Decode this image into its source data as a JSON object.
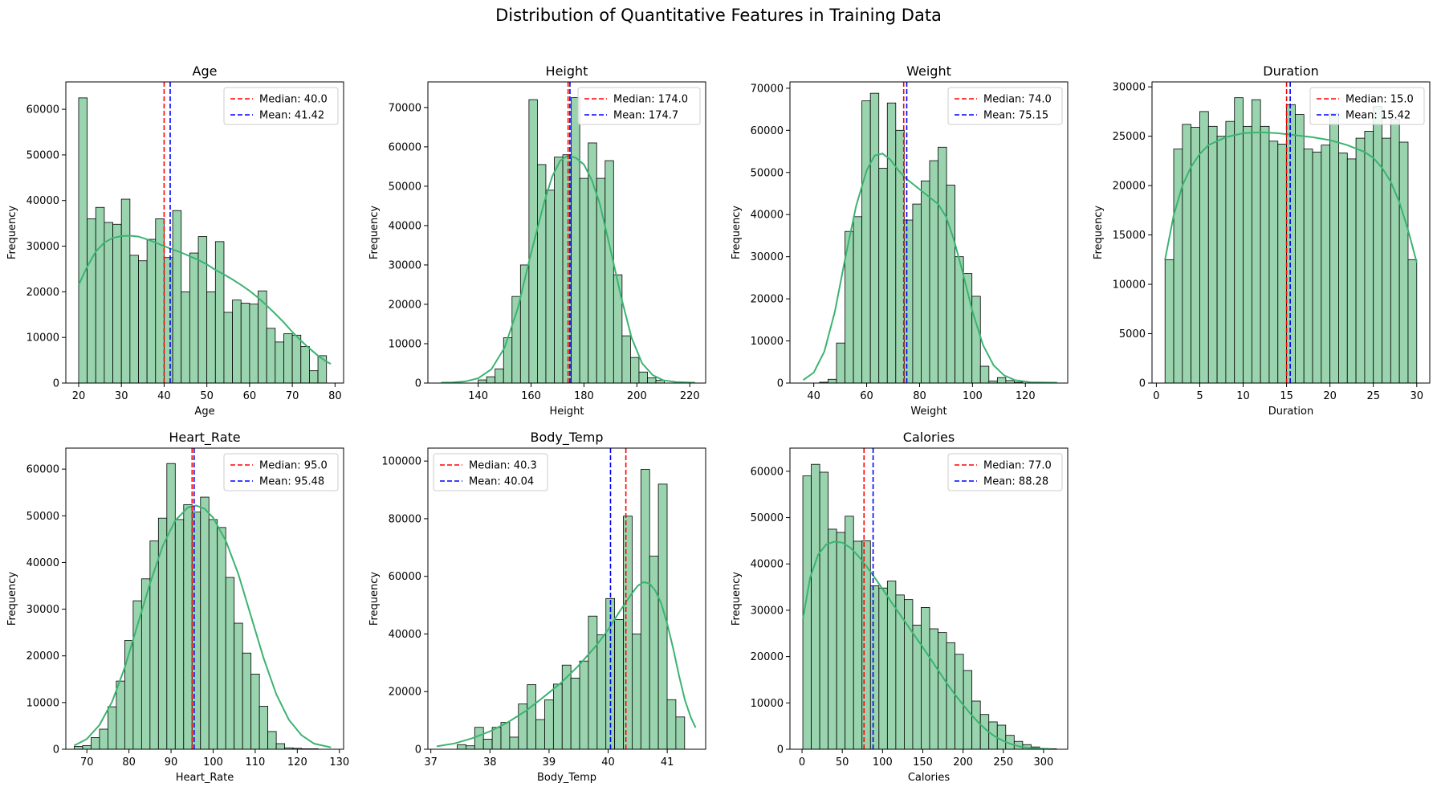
{
  "figure": {
    "title": "Distribution of Quantitative Features in Training Data"
  },
  "colors": {
    "bar_fill": "#99d4ae",
    "bar_edge": "#000000",
    "kde": "#3cb371",
    "median": "#ff0000",
    "mean": "#0000ff"
  },
  "chart_data": [
    {
      "type": "bar",
      "title": "Age",
      "xlabel": "Age",
      "ylabel": "Frequency",
      "xlim": [
        17,
        82
      ],
      "ylim": [
        0,
        66000
      ],
      "xticks": [
        20,
        30,
        40,
        50,
        60,
        70,
        80
      ],
      "yticks": [
        0,
        10000,
        20000,
        30000,
        40000,
        50000,
        60000
      ],
      "bins": {
        "start": 20,
        "width": 2.0
      },
      "values": [
        62500,
        36000,
        38500,
        35200,
        34800,
        40300,
        28000,
        26800,
        31500,
        36000,
        27500,
        37800,
        20000,
        28500,
        32100,
        20000,
        31000,
        15500,
        18200,
        17500,
        17300,
        20200,
        12000,
        9000,
        10800,
        10500,
        8000,
        2700,
        6000
      ],
      "kde": [
        [
          20,
          21500
        ],
        [
          22,
          25500
        ],
        [
          24,
          28800
        ],
        [
          26,
          30800
        ],
        [
          28,
          31800
        ],
        [
          30,
          32200
        ],
        [
          32,
          32300
        ],
        [
          34,
          32100
        ],
        [
          36,
          31500
        ],
        [
          38,
          30800
        ],
        [
          40,
          30000
        ],
        [
          42,
          29300
        ],
        [
          44,
          28600
        ],
        [
          46,
          27800
        ],
        [
          48,
          27000
        ],
        [
          50,
          26000
        ],
        [
          52,
          24800
        ],
        [
          54,
          23800
        ],
        [
          56,
          22700
        ],
        [
          58,
          21500
        ],
        [
          60,
          20200
        ],
        [
          62,
          18700
        ],
        [
          64,
          17000
        ],
        [
          66,
          15200
        ],
        [
          68,
          13300
        ],
        [
          70,
          11200
        ],
        [
          72,
          9300
        ],
        [
          74,
          7600
        ],
        [
          76,
          6000
        ],
        [
          78,
          4700
        ],
        [
          79,
          4200
        ]
      ],
      "median": 40.0,
      "mean": 41.42,
      "legend": {
        "placement": "upper right",
        "median_label": "Median: 40.0",
        "mean_label": "Mean: 41.42"
      }
    },
    {
      "type": "bar",
      "title": "Height",
      "xlabel": "Height",
      "ylabel": "Frequency",
      "xlim": [
        121,
        226
      ],
      "ylim": [
        0,
        76500
      ],
      "xticks": [
        140,
        160,
        180,
        200,
        220
      ],
      "yticks": [
        0,
        10000,
        20000,
        30000,
        40000,
        50000,
        60000,
        70000
      ],
      "bins": {
        "start": 140,
        "width": 3.2
      },
      "values": [
        800,
        1600,
        3600,
        11500,
        22000,
        30000,
        72000,
        55500,
        49000,
        57400,
        58000,
        72500,
        52000,
        61000,
        52000,
        56500,
        27500,
        12000,
        6500,
        2800,
        1300,
        700
      ],
      "kde": [
        [
          126,
          100
        ],
        [
          130,
          150
        ],
        [
          135,
          400
        ],
        [
          140,
          1200
        ],
        [
          145,
          3500
        ],
        [
          150,
          9000
        ],
        [
          155,
          19000
        ],
        [
          160,
          33000
        ],
        [
          165,
          46000
        ],
        [
          168,
          52500
        ],
        [
          171,
          56500
        ],
        [
          174,
          57800
        ],
        [
          177,
          57200
        ],
        [
          180,
          55500
        ],
        [
          183,
          51500
        ],
        [
          186,
          45500
        ],
        [
          190,
          34000
        ],
        [
          194,
          22000
        ],
        [
          198,
          11500
        ],
        [
          202,
          5000
        ],
        [
          206,
          2000
        ],
        [
          210,
          700
        ],
        [
          215,
          250
        ],
        [
          222,
          100
        ]
      ],
      "median": 174.0,
      "mean": 174.7,
      "legend": {
        "placement": "upper right",
        "median_label": "Median: 174.0",
        "mean_label": "Mean: 174.7"
      }
    },
    {
      "type": "bar",
      "title": "Weight",
      "xlabel": "Weight",
      "ylabel": "Frequency",
      "xlim": [
        31,
        136
      ],
      "ylim": [
        0,
        71500
      ],
      "xticks": [
        40,
        60,
        80,
        100,
        120
      ],
      "yticks": [
        0,
        10000,
        20000,
        30000,
        40000,
        50000,
        60000,
        70000
      ],
      "bins": {
        "start": 39,
        "width": 3.2
      },
      "values": [
        0,
        200,
        900,
        9500,
        36000,
        39500,
        67000,
        68800,
        51000,
        66500,
        60000,
        38700,
        42500,
        48000,
        52800,
        56000,
        47000,
        30000,
        26000,
        20600,
        4000,
        500,
        1300,
        600,
        200
      ],
      "kde": [
        [
          36,
          700
        ],
        [
          40,
          2500
        ],
        [
          44,
          7500
        ],
        [
          48,
          17000
        ],
        [
          52,
          30000
        ],
        [
          56,
          42000
        ],
        [
          60,
          50500
        ],
        [
          63,
          54000
        ],
        [
          66,
          54500
        ],
        [
          69,
          53000
        ],
        [
          72,
          50500
        ],
        [
          75,
          48500
        ],
        [
          78,
          47000
        ],
        [
          81,
          45500
        ],
        [
          84,
          44000
        ],
        [
          87,
          42500
        ],
        [
          90,
          39500
        ],
        [
          93,
          34000
        ],
        [
          96,
          27000
        ],
        [
          100,
          17000
        ],
        [
          104,
          9000
        ],
        [
          108,
          4200
        ],
        [
          112,
          1800
        ],
        [
          116,
          700
        ],
        [
          122,
          200
        ],
        [
          132,
          100
        ]
      ],
      "median": 74.0,
      "mean": 75.15,
      "legend": {
        "placement": "upper right",
        "median_label": "Median: 74.0",
        "mean_label": "Mean: 75.15"
      }
    },
    {
      "type": "bar",
      "title": "Duration",
      "xlabel": "Duration",
      "ylabel": "Frequency",
      "xlim": [
        -0.5,
        31.5
      ],
      "ylim": [
        0,
        30500
      ],
      "xticks": [
        0,
        5,
        10,
        15,
        20,
        25,
        30
      ],
      "yticks": [
        0,
        5000,
        10000,
        15000,
        20000,
        25000,
        30000
      ],
      "bins": {
        "start": 1,
        "width": 1.0
      },
      "values": [
        12500,
        23700,
        26200,
        25900,
        27500,
        26000,
        25000,
        26500,
        28900,
        26000,
        28700,
        26000,
        24500,
        24200,
        28200,
        27200,
        23700,
        23400,
        24100,
        27300,
        23300,
        22700,
        24800,
        25500,
        28000,
        24800,
        26700,
        24400,
        12500
      ],
      "kde": [
        [
          1,
          12500
        ],
        [
          2,
          17000
        ],
        [
          3,
          20000
        ],
        [
          4,
          21900
        ],
        [
          5,
          23200
        ],
        [
          6,
          24100
        ],
        [
          8,
          24900
        ],
        [
          10,
          25300
        ],
        [
          12,
          25400
        ],
        [
          14,
          25300
        ],
        [
          16,
          25100
        ],
        [
          18,
          24900
        ],
        [
          20,
          24600
        ],
        [
          22,
          24100
        ],
        [
          24,
          23400
        ],
        [
          25,
          22800
        ],
        [
          26,
          21800
        ],
        [
          27,
          20400
        ],
        [
          28,
          18300
        ],
        [
          29,
          15500
        ],
        [
          30,
          12200
        ]
      ],
      "median": 15.0,
      "mean": 15.42,
      "legend": {
        "placement": "upper right",
        "median_label": "Median: 15.0",
        "mean_label": "Mean: 15.42"
      }
    },
    {
      "type": "bar",
      "title": "Heart_Rate",
      "xlabel": "Heart_Rate",
      "ylabel": "Frequency",
      "xlim": [
        65,
        131
      ],
      "ylim": [
        0,
        64500
      ],
      "xticks": [
        70,
        80,
        90,
        100,
        110,
        120,
        130
      ],
      "yticks": [
        0,
        10000,
        20000,
        30000,
        40000,
        50000,
        60000
      ],
      "bins": {
        "start": 67,
        "width": 2.0
      },
      "values": [
        600,
        800,
        2500,
        4300,
        9100,
        14600,
        23300,
        31800,
        36500,
        44600,
        49500,
        61200,
        49200,
        52400,
        50800,
        54000,
        49200,
        47500,
        36800,
        27000,
        20600,
        16100,
        9200,
        3800,
        1200,
        300,
        200,
        100,
        100
      ],
      "kde": [
        [
          67,
          800
        ],
        [
          70,
          2200
        ],
        [
          73,
          5200
        ],
        [
          76,
          10200
        ],
        [
          79,
          17500
        ],
        [
          82,
          26500
        ],
        [
          85,
          35500
        ],
        [
          88,
          43500
        ],
        [
          91,
          49000
        ],
        [
          94,
          51800
        ],
        [
          96,
          52200
        ],
        [
          98,
          51500
        ],
        [
          100,
          49600
        ],
        [
          103,
          44700
        ],
        [
          106,
          37500
        ],
        [
          109,
          28500
        ],
        [
          112,
          19500
        ],
        [
          115,
          11800
        ],
        [
          118,
          6300
        ],
        [
          121,
          3000
        ],
        [
          124,
          1200
        ],
        [
          128,
          400
        ]
      ],
      "median": 95.0,
      "mean": 95.48,
      "legend": {
        "placement": "upper right",
        "median_label": "Median: 95.0",
        "mean_label": "Mean: 95.48"
      }
    },
    {
      "type": "bar",
      "title": "Body_Temp",
      "xlabel": "Body_Temp",
      "ylabel": "Frequency",
      "xlim": [
        36.95,
        41.65
      ],
      "ylim": [
        0,
        104500
      ],
      "xticks": [
        37,
        38,
        39,
        40,
        41
      ],
      "yticks": [
        0,
        20000,
        40000,
        60000,
        80000,
        100000
      ],
      "bins": {
        "start": 37.15,
        "width": 0.148
      },
      "values": [
        0,
        0,
        1600,
        1200,
        7600,
        3500,
        7600,
        9300,
        4200,
        15700,
        22400,
        10300,
        17100,
        22600,
        29200,
        24700,
        30600,
        46200,
        39700,
        52300,
        45000,
        80900,
        40000,
        97100,
        67000,
        92000,
        17200,
        11200
      ],
      "kde": [
        [
          37.1,
          1000
        ],
        [
          37.4,
          2000
        ],
        [
          37.7,
          3800
        ],
        [
          38.0,
          6200
        ],
        [
          38.3,
          9300
        ],
        [
          38.6,
          13200
        ],
        [
          38.9,
          18000
        ],
        [
          39.2,
          23000
        ],
        [
          39.5,
          29000
        ],
        [
          39.8,
          36000
        ],
        [
          40.0,
          41500
        ],
        [
          40.2,
          48000
        ],
        [
          40.4,
          54000
        ],
        [
          40.5,
          56700
        ],
        [
          40.6,
          58000
        ],
        [
          40.7,
          57500
        ],
        [
          40.8,
          55000
        ],
        [
          40.9,
          50500
        ],
        [
          41.0,
          43500
        ],
        [
          41.1,
          35000
        ],
        [
          41.2,
          25500
        ],
        [
          41.3,
          17000
        ],
        [
          41.4,
          11000
        ],
        [
          41.48,
          7500
        ]
      ],
      "median": 40.3,
      "mean": 40.04,
      "legend": {
        "placement": "upper left",
        "median_label": "Median: 40.3",
        "mean_label": "Mean: 40.04"
      }
    },
    {
      "type": "bar",
      "title": "Calories",
      "xlabel": "Calories",
      "ylabel": "Frequency",
      "xlim": [
        -15,
        330
      ],
      "ylim": [
        0,
        65000
      ],
      "xticks": [
        0,
        50,
        100,
        150,
        200,
        250,
        300
      ],
      "yticks": [
        0,
        10000,
        20000,
        30000,
        40000,
        50000,
        60000
      ],
      "bins": {
        "start": 1,
        "width": 10.5
      },
      "values": [
        59000,
        61500,
        59800,
        47500,
        46800,
        50300,
        44900,
        45000,
        35300,
        34800,
        36300,
        33300,
        32300,
        26800,
        30600,
        26000,
        25200,
        23000,
        20500,
        17000,
        10400,
        7500,
        5900,
        5200,
        3000,
        1700,
        1000,
        500,
        200,
        100
      ],
      "kde": [
        [
          1,
          28000
        ],
        [
          10,
          37000
        ],
        [
          20,
          42000
        ],
        [
          30,
          44200
        ],
        [
          40,
          44800
        ],
        [
          50,
          44600
        ],
        [
          60,
          43500
        ],
        [
          70,
          41700
        ],
        [
          80,
          39500
        ],
        [
          90,
          37100
        ],
        [
          100,
          34600
        ],
        [
          110,
          32000
        ],
        [
          120,
          29500
        ],
        [
          130,
          27000
        ],
        [
          140,
          24500
        ],
        [
          150,
          22000
        ],
        [
          160,
          19400
        ],
        [
          170,
          16800
        ],
        [
          180,
          14200
        ],
        [
          190,
          11800
        ],
        [
          200,
          9600
        ],
        [
          210,
          7500
        ],
        [
          220,
          5600
        ],
        [
          230,
          4000
        ],
        [
          240,
          2700
        ],
        [
          250,
          1800
        ],
        [
          260,
          1100
        ],
        [
          270,
          600
        ],
        [
          280,
          300
        ],
        [
          300,
          100
        ],
        [
          310,
          50
        ]
      ],
      "median": 77.0,
      "mean": 88.28,
      "legend": {
        "placement": "upper right",
        "median_label": "Median: 77.0",
        "mean_label": "Mean: 88.28"
      }
    }
  ]
}
